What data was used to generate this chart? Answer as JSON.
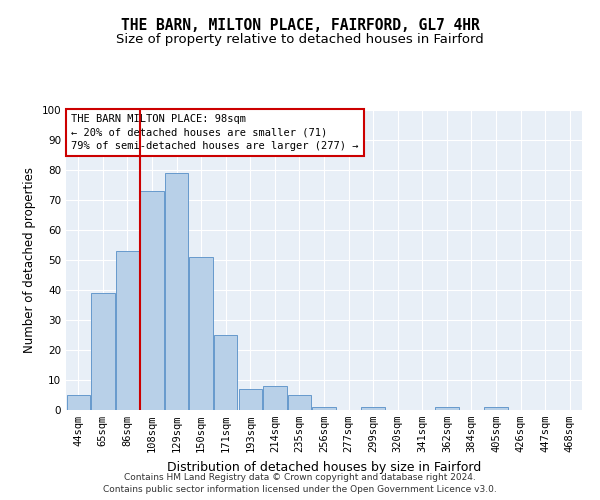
{
  "title": "THE BARN, MILTON PLACE, FAIRFORD, GL7 4HR",
  "subtitle": "Size of property relative to detached houses in Fairford",
  "xlabel": "Distribution of detached houses by size in Fairford",
  "ylabel": "Number of detached properties",
  "categories": [
    "44sqm",
    "65sqm",
    "86sqm",
    "108sqm",
    "129sqm",
    "150sqm",
    "171sqm",
    "193sqm",
    "214sqm",
    "235sqm",
    "256sqm",
    "277sqm",
    "299sqm",
    "320sqm",
    "341sqm",
    "362sqm",
    "384sqm",
    "405sqm",
    "426sqm",
    "447sqm",
    "468sqm"
  ],
  "values": [
    5,
    39,
    53,
    73,
    79,
    51,
    25,
    7,
    8,
    5,
    1,
    0,
    1,
    0,
    0,
    1,
    0,
    1,
    0,
    0,
    0
  ],
  "bar_color": "#b8d0e8",
  "bar_edge_color": "#6699cc",
  "bar_edge_width": 0.7,
  "vline_color": "#cc0000",
  "vline_x": 2.5,
  "annotation_lines": [
    "THE BARN MILTON PLACE: 98sqm",
    "← 20% of detached houses are smaller (71)",
    "79% of semi-detached houses are larger (277) →"
  ],
  "annotation_box_color": "#cc0000",
  "background_color": "#e8eff7",
  "grid_color": "#ffffff",
  "ylim": [
    0,
    100
  ],
  "yticks": [
    0,
    10,
    20,
    30,
    40,
    50,
    60,
    70,
    80,
    90,
    100
  ],
  "footer_line1": "Contains HM Land Registry data © Crown copyright and database right 2024.",
  "footer_line2": "Contains public sector information licensed under the Open Government Licence v3.0.",
  "title_fontsize": 10.5,
  "subtitle_fontsize": 9.5,
  "xlabel_fontsize": 9,
  "ylabel_fontsize": 8.5,
  "tick_fontsize": 7.5,
  "annotation_fontsize": 7.5,
  "footer_fontsize": 6.5
}
